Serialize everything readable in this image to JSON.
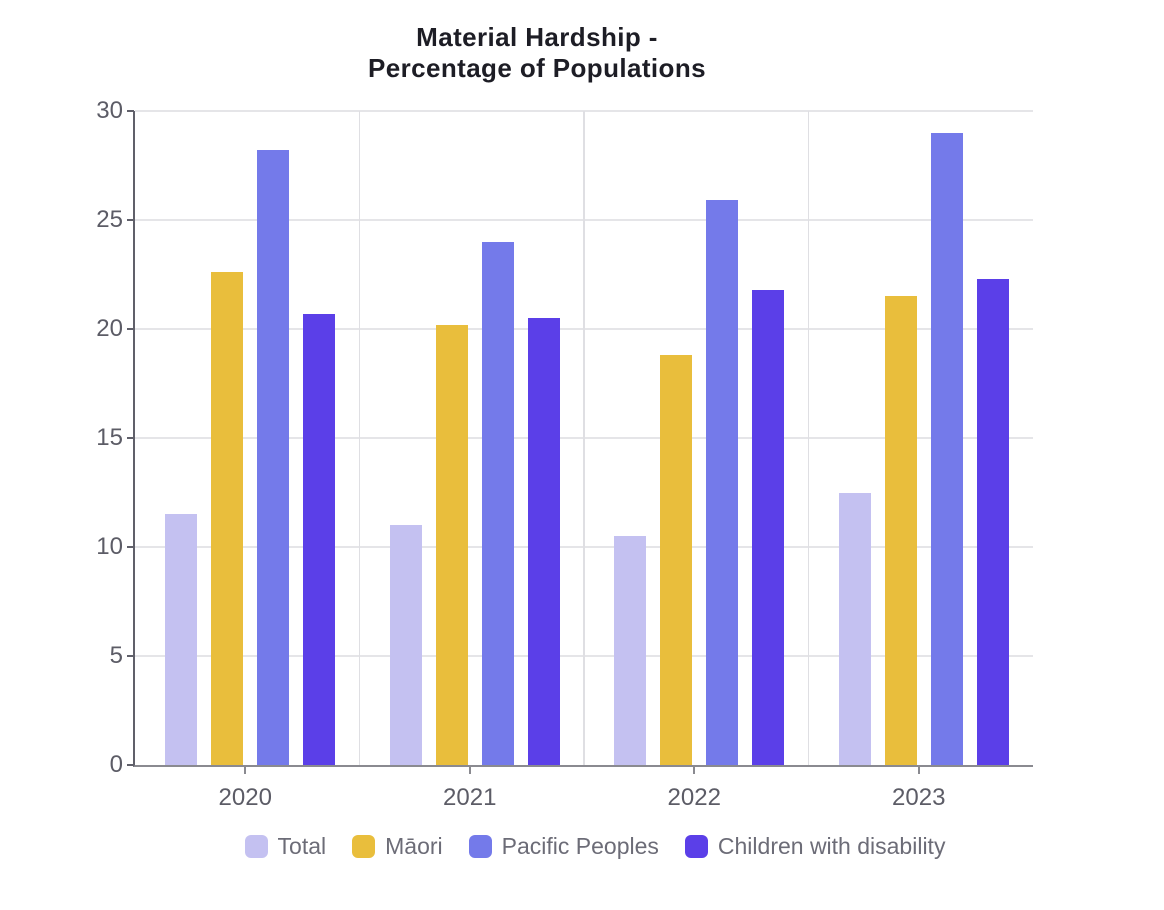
{
  "title": {
    "line1": "Material Hardship -",
    "line2": "Percentage of Populations"
  },
  "chart_data": {
    "type": "bar",
    "title": "Material Hardship - Percentage of Populations",
    "categories": [
      "2020",
      "2021",
      "2022",
      "2023"
    ],
    "series": [
      {
        "name": "Total",
        "color": "#c4c1f1",
        "values": [
          11.5,
          11.0,
          10.5,
          12.5
        ]
      },
      {
        "name": "Māori",
        "color": "#e9be3c",
        "values": [
          22.6,
          20.2,
          18.8,
          21.5
        ]
      },
      {
        "name": "Pacific Peoples",
        "color": "#747aea",
        "values": [
          28.2,
          24.0,
          25.9,
          29.0
        ]
      },
      {
        "name": "Children with disability",
        "color": "#5b3fe8",
        "values": [
          20.7,
          20.5,
          21.8,
          22.3
        ]
      }
    ],
    "xlabel": "",
    "ylabel": "",
    "ylim": [
      0,
      30
    ],
    "yticks": [
      0,
      5,
      10,
      15,
      20,
      25,
      30
    ],
    "grid": true,
    "legend_position": "bottom"
  },
  "colors": {
    "title_text": "#1d1d25",
    "axis_text": "#5c5c66",
    "legend_text": "#6c6c77",
    "gridline": "#e5e5e8",
    "y_axis_line": "#60606a",
    "x_axis_line": "#8a8a90"
  }
}
